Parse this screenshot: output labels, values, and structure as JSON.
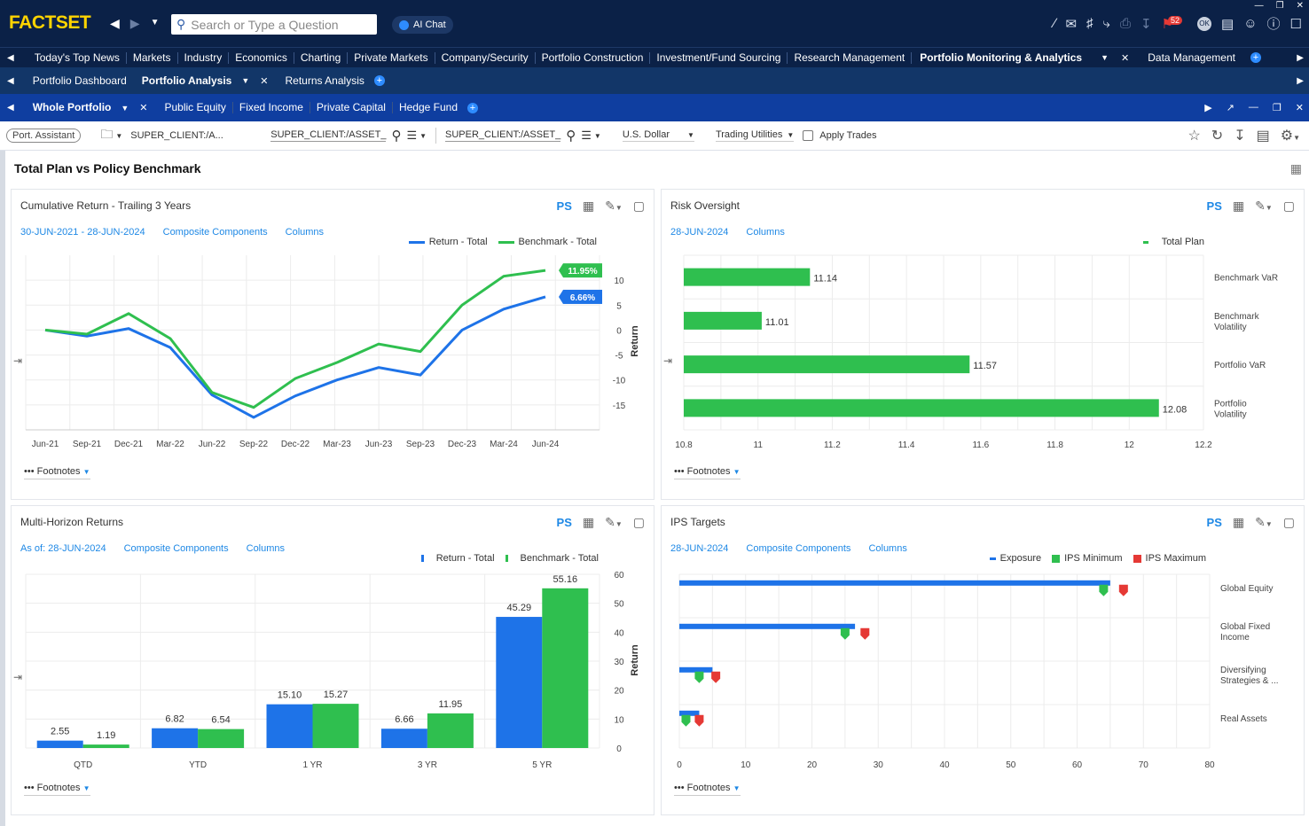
{
  "app": {
    "logo_main": "FACTSET",
    "search_placeholder": "Search or Type a Question",
    "ai_chat": "AI Chat",
    "notifications_badge": "52",
    "avatar": "OK"
  },
  "nav_main": [
    "Today's Top News",
    "Markets",
    "Industry",
    "Economics",
    "Charting",
    "Private Markets",
    "Company/Security",
    "Portfolio Construction",
    "Investment/Fund Sourcing",
    "Research Management",
    "Portfolio Monitoring & Analytics",
    "Data Management"
  ],
  "nav_tabs": [
    "Portfolio Dashboard",
    "Portfolio Analysis",
    "Returns Analysis"
  ],
  "nav_sub": [
    "Whole Portfolio",
    "Public Equity",
    "Fixed Income",
    "Private Capital",
    "Hedge Fund"
  ],
  "toolbar": {
    "assistant": "Port. Assistant",
    "account": "SUPER_CLIENT:/A...",
    "portfolio": "SUPER_CLIENT:/ASSET_",
    "benchmark": "SUPER_CLIENT:/ASSET_",
    "currency": "U.S. Dollar",
    "trading": "Trading Utilities",
    "apply": "Apply Trades"
  },
  "page_title": "Total Plan vs Policy Benchmark",
  "footnotes": "Footnotes",
  "ps": "PS",
  "panels": {
    "cum": {
      "title": "Cumulative Return - Trailing 3 Years",
      "date": "30-JUN-2021 - 28-JUN-2024",
      "link2": "Composite Components",
      "link3": "Columns",
      "ylabel": "Return",
      "chart_data": {
        "type": "line",
        "x": [
          "Jun-21",
          "Sep-21",
          "Dec-21",
          "Mar-22",
          "Jun-22",
          "Sep-22",
          "Dec-22",
          "Mar-23",
          "Jun-23",
          "Sep-23",
          "Dec-23",
          "Mar-24",
          "Jun-24"
        ],
        "ylim": [
          -20,
          15
        ],
        "yticks": [
          "10",
          "5",
          "0",
          "-5",
          "-10",
          "-15"
        ],
        "series": [
          {
            "name": "Return - Total",
            "color": "#1e73e8",
            "values": [
              0,
              -1.2,
              0.3,
              -3.5,
              -13,
              -17.5,
              -13.2,
              -10,
              -7.5,
              -9,
              0,
              4.2,
              6.66
            ],
            "end_label": "6.66%"
          },
          {
            "name": "Benchmark - Total",
            "color": "#2fbf4f",
            "values": [
              0,
              -0.8,
              3.3,
              -1.7,
              -12.5,
              -15.5,
              -9.7,
              -6.5,
              -2.8,
              -4.3,
              5,
              10.8,
              11.95
            ],
            "end_label": "11.95%"
          }
        ]
      }
    },
    "risk": {
      "title": "Risk Oversight",
      "date": "28-JUN-2024",
      "link3": "Columns",
      "chart_data": {
        "type": "bar",
        "categories": [
          "Benchmark VaR",
          "Benchmark Volatility",
          "Portfolio VaR",
          "Portfolio Volatility"
        ],
        "cat_lines": [
          [
            "Benchmark VaR"
          ],
          [
            "Benchmark",
            "Volatility"
          ],
          [
            "Portfolio VaR"
          ],
          [
            "Portfolio",
            "Volatility"
          ]
        ],
        "series": [
          {
            "name": "Total Plan",
            "color": "#2fbf4f",
            "values": [
              11.14,
              11.01,
              11.57,
              12.08
            ]
          }
        ],
        "xlim": [
          10.8,
          12.2
        ],
        "xticks": [
          "10.8",
          "11",
          "11.2",
          "11.4",
          "11.6",
          "11.8",
          "12",
          "12.2"
        ]
      }
    },
    "multi": {
      "title": "Multi-Horizon Returns",
      "date": "As of: 28-JUN-2024",
      "link2": "Composite Components",
      "link3": "Columns",
      "ylabel": "Return",
      "chart_data": {
        "type": "bar",
        "categories": [
          "QTD",
          "YTD",
          "1 YR",
          "3 YR",
          "5 YR"
        ],
        "ylim": [
          0,
          60
        ],
        "yticks": [
          "0",
          "10",
          "20",
          "30",
          "40",
          "50",
          "60"
        ],
        "series": [
          {
            "name": "Return - Total",
            "color": "#1e73e8",
            "values": [
              2.55,
              6.82,
              15.1,
              6.66,
              45.29
            ],
            "labels": [
              "2.55",
              "6.82",
              "15.10",
              "6.66",
              "45.29"
            ]
          },
          {
            "name": "Benchmark - Total",
            "color": "#2fbf4f",
            "values": [
              1.19,
              6.54,
              15.27,
              11.95,
              55.16
            ],
            "labels": [
              "1.19",
              "6.54",
              "15.27",
              "11.95",
              "55.16"
            ]
          }
        ]
      }
    },
    "ips": {
      "title": "IPS Targets",
      "date": "28-JUN-2024",
      "link2": "Composite Components",
      "link3": "Columns",
      "chart_data": {
        "type": "bar",
        "categories": [
          "Global Equity",
          "Global Fixed Income",
          "Diversifying Strategies & ...",
          "Real Assets"
        ],
        "cat_lines": [
          [
            "Global Equity"
          ],
          [
            "Global Fixed",
            "Income"
          ],
          [
            "Diversifying",
            "Strategies & ..."
          ],
          [
            "Real Assets"
          ]
        ],
        "xlim": [
          0,
          80
        ],
        "xticks": [
          "0",
          "10",
          "20",
          "30",
          "40",
          "50",
          "60",
          "70",
          "80"
        ],
        "series": [
          {
            "name": "Exposure",
            "color": "#1e73e8",
            "values": [
              65,
              26.5,
              5,
              3
            ]
          },
          {
            "name": "IPS Minimum",
            "color": "#2fbf4f",
            "values": [
              64,
              25,
              3,
              1
            ]
          },
          {
            "name": "IPS Maximum",
            "color": "#e53935",
            "values": [
              67,
              28,
              5.5,
              3
            ]
          }
        ]
      }
    }
  }
}
